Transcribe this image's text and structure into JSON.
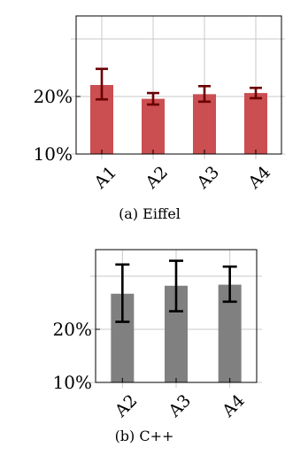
{
  "chart_data": [
    {
      "type": "bar",
      "caption": "(a) Eiffel",
      "categories": [
        "A1",
        "A2",
        "A3",
        "A4"
      ],
      "values": [
        22.0,
        19.6,
        20.4,
        20.6
      ],
      "error": [
        [
          19.5,
          24.8
        ],
        [
          18.6,
          20.6
        ],
        [
          19.1,
          21.8
        ],
        [
          19.7,
          21.5
        ]
      ],
      "yticks": [
        "10%",
        "20%"
      ],
      "ylim": [
        10,
        34
      ],
      "grid": true,
      "colors": {
        "bar": "#cb4e51",
        "error": "#6b0000"
      }
    },
    {
      "type": "bar",
      "caption": "(b) C++",
      "categories": [
        "A2",
        "A3",
        "A4"
      ],
      "values": [
        26.7,
        28.2,
        28.4
      ],
      "error": [
        [
          21.4,
          32.2
        ],
        [
          23.4,
          32.9
        ],
        [
          25.2,
          31.8
        ]
      ],
      "yticks": [
        "10%",
        "20%"
      ],
      "ylim": [
        10,
        35
      ],
      "grid": true,
      "colors": {
        "bar": "#808080",
        "error": "#000000"
      }
    }
  ]
}
